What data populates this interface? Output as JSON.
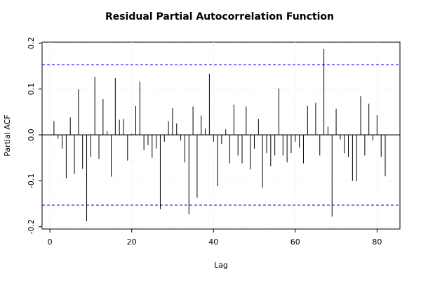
{
  "chart_data": {
    "type": "pacf",
    "title": "Residual Partial Autocorrelation Function",
    "x_label": "Lag",
    "y_label": "Partial ACF",
    "x": [
      1,
      2,
      3,
      4,
      5,
      6,
      7,
      8,
      9,
      10,
      11,
      12,
      13,
      14,
      15,
      16,
      17,
      18,
      19,
      20,
      21,
      22,
      23,
      24,
      25,
      26,
      27,
      28,
      29,
      30,
      31,
      32,
      33,
      34,
      35,
      36,
      37,
      38,
      39,
      40,
      41,
      42,
      43,
      44,
      45,
      46,
      47,
      48,
      49,
      50,
      51,
      52,
      53,
      54,
      55,
      56,
      57,
      58,
      59,
      60,
      61,
      62,
      63,
      64,
      65,
      66,
      67,
      68,
      69,
      70,
      71,
      72,
      73,
      74,
      75,
      76,
      77,
      78,
      79,
      80,
      81,
      82
    ],
    "values": [
      0.03,
      -0.008,
      -0.03,
      -0.095,
      0.038,
      -0.085,
      0.099,
      -0.074,
      -0.188,
      -0.048,
      0.126,
      -0.052,
      0.078,
      0.008,
      -0.091,
      0.124,
      0.033,
      0.035,
      -0.056,
      0.002,
      0.063,
      0.116,
      -0.033,
      -0.022,
      -0.05,
      -0.03,
      -0.162,
      -0.015,
      0.03,
      0.058,
      0.025,
      -0.012,
      -0.06,
      -0.173,
      0.062,
      -0.137,
      0.042,
      0.014,
      0.133,
      -0.015,
      -0.112,
      -0.02,
      0.012,
      -0.062,
      0.066,
      -0.045,
      -0.062,
      0.062,
      -0.075,
      -0.03,
      0.035,
      -0.115,
      -0.04,
      -0.068,
      -0.045,
      0.101,
      -0.045,
      -0.06,
      -0.04,
      -0.015,
      -0.028,
      -0.062,
      0.063,
      0.001,
      0.07,
      -0.045,
      0.187,
      0.018,
      -0.178,
      0.057,
      -0.01,
      -0.04,
      -0.048,
      -0.1,
      -0.101,
      0.084,
      -0.045,
      0.068,
      -0.012,
      0.043,
      -0.048,
      -0.09
    ],
    "color": "#000000",
    "conf_limits": [
      0.153,
      -0.153
    ],
    "conf_color": "#0000ff",
    "xlim": [
      -1.9,
      85.6
    ],
    "ylim": [
      -0.205,
      0.202
    ],
    "xticks": [
      0,
      20,
      40,
      60,
      80
    ],
    "yticks": [
      -0.2,
      -0.1,
      {
        "value": 0,
        "label": "0.0"
      },
      0.1,
      0.2
    ],
    "grid": true
  }
}
